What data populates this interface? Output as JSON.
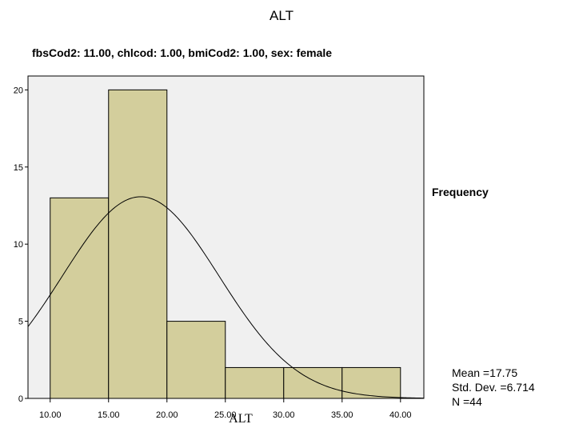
{
  "header": {
    "title": "ALT",
    "subtitle": "fbsCod2: 11.00, chlcod: 1.00, bmiCod2: 1.00, sex: female"
  },
  "side": {
    "frequency_label": "Frequency"
  },
  "stats": {
    "mean": "Mean =17.75",
    "std": "Std. Dev. =6.714",
    "n": "N =44"
  },
  "chart_data": {
    "type": "bar",
    "title": "ALT",
    "subtitle": "fbsCod2: 11.00, chlcod: 1.00, bmiCod2: 1.00, sex: female",
    "xlabel": "ALT",
    "ylabel": "Frequency",
    "bins": [
      {
        "from": 10,
        "to": 15,
        "count": 13
      },
      {
        "from": 15,
        "to": 20,
        "count": 20
      },
      {
        "from": 20,
        "to": 25,
        "count": 5
      },
      {
        "from": 25,
        "to": 30,
        "count": 2
      },
      {
        "from": 30,
        "to": 35,
        "count": 2
      },
      {
        "from": 35,
        "to": 40,
        "count": 2
      }
    ],
    "x_ticks": [
      "10.00",
      "15.00",
      "20.00",
      "25.00",
      "30.00",
      "35.00",
      "40.00"
    ],
    "y_ticks": [
      "0",
      "5",
      "10",
      "15",
      "20"
    ],
    "xlim": [
      8.1,
      42.0
    ],
    "ylim": [
      0,
      20.9
    ],
    "normal_curve": {
      "mean": 17.75,
      "std": 6.714,
      "n": 44,
      "bin_width": 5
    },
    "colors": {
      "plot_background": "#f0f0f0",
      "bar_fill": "#d3ce9c",
      "bar_stroke": "#000000",
      "curve": "#000000"
    }
  }
}
